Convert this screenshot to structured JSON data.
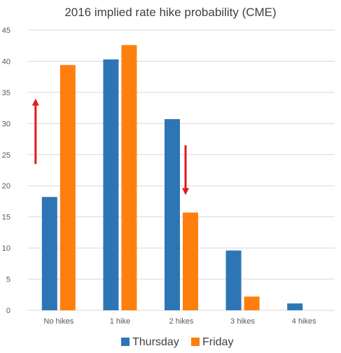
{
  "chart_data": {
    "type": "bar",
    "title": "2016 implied rate hike probability (CME)",
    "categories": [
      "No hikes",
      "1 hike",
      "2 hikes",
      "3 hikes",
      "4 hikes"
    ],
    "series": [
      {
        "name": "Thursday",
        "values": [
          18.2,
          40.3,
          30.7,
          9.6,
          1.1
        ],
        "color": "#2e75b6"
      },
      {
        "name": "Friday",
        "values": [
          39.4,
          42.6,
          15.7,
          2.2,
          0
        ],
        "color": "#ff7f0e"
      }
    ],
    "ylim": [
      0,
      45
    ],
    "yticks": [
      0,
      5,
      10,
      15,
      20,
      25,
      30,
      35,
      40,
      45
    ],
    "grid": true,
    "legend": "bottom",
    "annotations": [
      {
        "type": "arrow",
        "direction": "up",
        "category": "No hikes",
        "from": 23.5,
        "to": 34.0,
        "color": "#e31a1c"
      },
      {
        "type": "arrow",
        "direction": "down",
        "category": "2 hikes",
        "from": 26.5,
        "to": 18.5,
        "color": "#e31a1c"
      }
    ]
  }
}
